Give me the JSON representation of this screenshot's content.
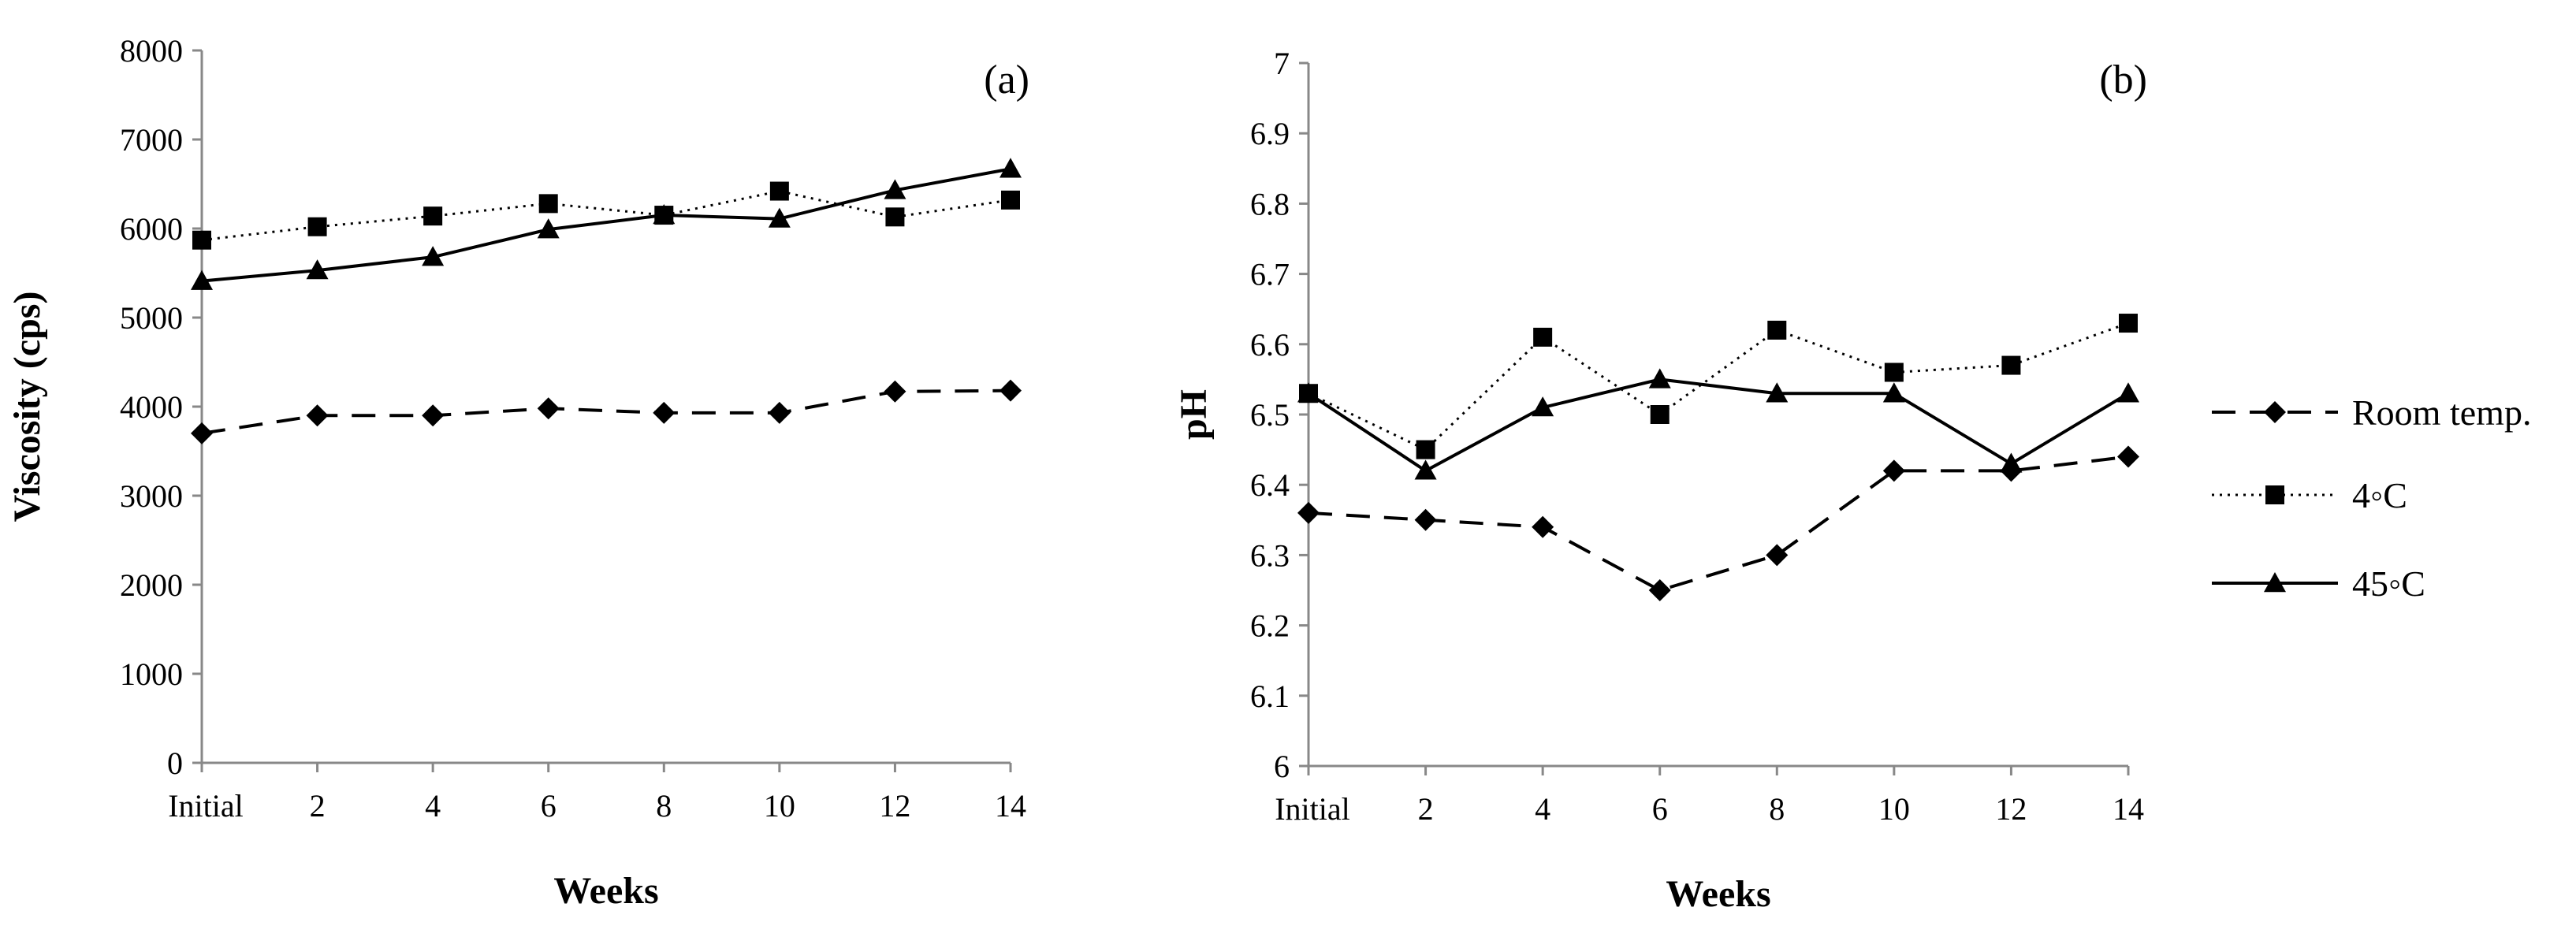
{
  "chart_data": [
    {
      "type": "line",
      "panel_label": "(a)",
      "categories": [
        "Initial",
        "2",
        "4",
        "6",
        "8",
        "10",
        "12",
        "14"
      ],
      "xlabel": "Weeks",
      "ylabel": "Viscosity (cps)",
      "ylim": [
        0,
        8000
      ],
      "yticks": [
        "0",
        "1000",
        "2000",
        "3000",
        "4000",
        "5000",
        "6000",
        "7000",
        "8000"
      ],
      "series": [
        {
          "name": "Room temp.",
          "values": [
            3700,
            3900,
            3900,
            3980,
            3930,
            3930,
            4170,
            4180
          ]
        },
        {
          "name": "4◦C",
          "values": [
            5870,
            6020,
            6140,
            6280,
            6150,
            6420,
            6130,
            6320
          ]
        },
        {
          "name": "45◦C",
          "values": [
            5410,
            5530,
            5680,
            5990,
            6150,
            6110,
            6430,
            6670
          ]
        }
      ]
    },
    {
      "type": "line",
      "panel_label": "(b)",
      "categories": [
        "Initial",
        "2",
        "4",
        "6",
        "8",
        "10",
        "12",
        "14"
      ],
      "xlabel": "Weeks",
      "ylabel": "pH",
      "ylim": [
        6,
        7
      ],
      "yticks": [
        "6",
        "6.1",
        "6.2",
        "6.3",
        "6.4",
        "6.5",
        "6.6",
        "6.7",
        "6.8",
        "6.9",
        "7"
      ],
      "series": [
        {
          "name": "Room temp.",
          "values": [
            6.36,
            6.35,
            6.34,
            6.25,
            6.3,
            6.42,
            6.42,
            6.44
          ]
        },
        {
          "name": "4◦C",
          "values": [
            6.53,
            6.45,
            6.61,
            6.5,
            6.62,
            6.56,
            6.57,
            6.63
          ]
        },
        {
          "name": "45◦C",
          "values": [
            6.53,
            6.42,
            6.51,
            6.55,
            6.53,
            6.53,
            6.43,
            6.53
          ]
        }
      ]
    }
  ],
  "legend": {
    "items": [
      {
        "label": "Room temp.",
        "marker": "diamond",
        "line": "dashed"
      },
      {
        "label": "4◦C",
        "marker": "square",
        "line": "dotted"
      },
      {
        "label": "45◦C",
        "marker": "triangle",
        "line": "solid"
      }
    ]
  }
}
